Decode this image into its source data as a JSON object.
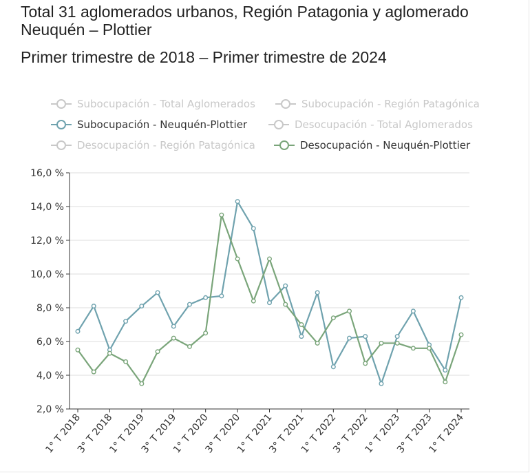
{
  "header": {
    "title": "Total 31 aglomerados urbanos, Región Patagonia y aglomerado Neuquén – Plottier",
    "subtitle": "Primer trimestre de 2018 – Primer trimestre de 2024"
  },
  "legend": [
    {
      "label": "Subocupación - Total Aglomerados",
      "active": false,
      "color": "#c8c8c8"
    },
    {
      "label": "Subocupación - Región Patagónica",
      "active": false,
      "color": "#c8c8c8"
    },
    {
      "label": "Subocupación - Neuquén-Plottier",
      "active": true,
      "color": "#6fa2ae"
    },
    {
      "label": "Desocupación - Total Aglomerados",
      "active": false,
      "color": "#c8c8c8"
    },
    {
      "label": "Desocupación - Región Patagónica",
      "active": false,
      "color": "#c8c8c8"
    },
    {
      "label": "Desocupación - Neuquén-Plottier",
      "active": true,
      "color": "#7aa57a"
    }
  ],
  "chart_data": {
    "type": "line",
    "x": [
      "1° T 2018",
      "2° T 2018",
      "3° T 2018",
      "4° T 2018",
      "1° T 2019",
      "2° T 2019",
      "3° T 2019",
      "4° T 2019",
      "1° T 2020",
      "2° T 2020",
      "3° T 2020",
      "4° T 2020",
      "1° T 2021",
      "2° T 2021",
      "3° T 2021",
      "4° T 2021",
      "1° T 2022",
      "2° T 2022",
      "3° T 2022",
      "4° T 2022",
      "1° T 2023",
      "2° T 2023",
      "3° T 2023",
      "4° T 2023",
      "1° T 2024"
    ],
    "x_tick_labels": [
      "1° T 2018",
      "3° T 2018",
      "1° T 2019",
      "3° T 2019",
      "1° T 2020",
      "3° T 2020",
      "1° T 2021",
      "3° T 2021",
      "1° T 2022",
      "3° T 2022",
      "1° T 2023",
      "3° T 2023",
      "1° T 2024"
    ],
    "y_ticks": [
      "2,0 %",
      "4,0 %",
      "6,0 %",
      "8,0 %",
      "10,0 %",
      "12,0 %",
      "14,0 %",
      "16,0 %"
    ],
    "ylim": [
      2,
      16
    ],
    "grid": true,
    "legend_position": "top",
    "series": [
      {
        "name": "Subocupación - Neuquén-Plottier",
        "color": "#6fa2ae",
        "values": [
          6.6,
          8.1,
          5.5,
          7.2,
          8.1,
          8.9,
          6.9,
          8.2,
          8.6,
          8.7,
          14.3,
          12.7,
          8.3,
          9.3,
          6.3,
          8.9,
          4.5,
          6.2,
          6.3,
          3.5,
          6.3,
          7.8,
          5.8,
          4.3,
          8.6
        ]
      },
      {
        "name": "Desocupación - Neuquén-Plottier",
        "color": "#7aa57a",
        "values": [
          5.5,
          4.2,
          5.3,
          4.8,
          3.5,
          5.4,
          6.2,
          5.7,
          6.5,
          13.5,
          10.9,
          8.4,
          10.9,
          8.2,
          7.0,
          5.9,
          7.4,
          7.8,
          4.7,
          5.9,
          5.9,
          5.6,
          5.6,
          3.6,
          6.4
        ]
      }
    ]
  }
}
